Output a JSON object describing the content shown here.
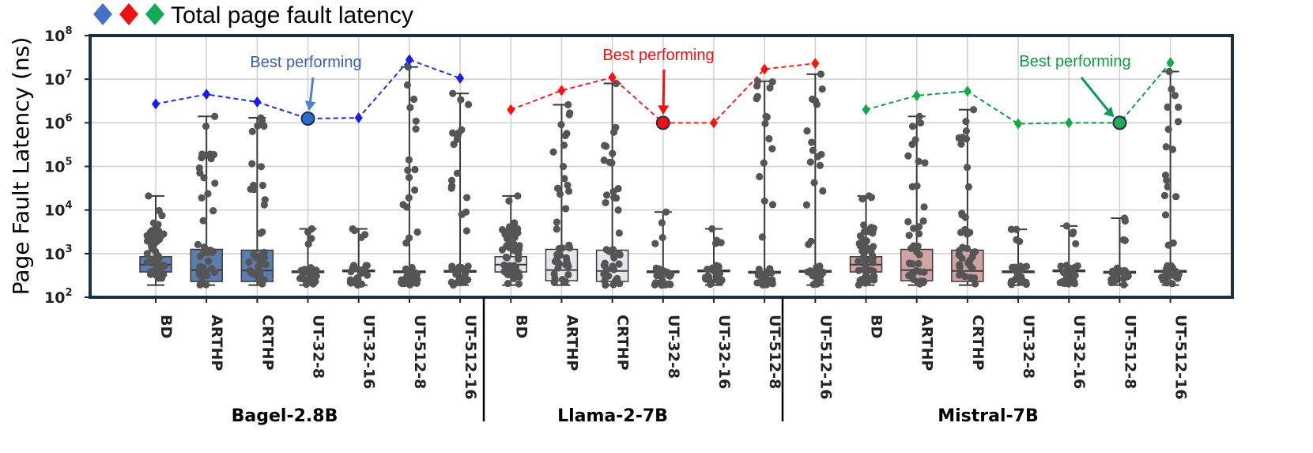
{
  "chart_data": {
    "type": "box+strip+line",
    "legend_label": "Total page fault latency",
    "legend_colors": [
      "#4472c4",
      "#ee1111",
      "#11aa55"
    ],
    "ylabel": "Page Fault Latency (ns)",
    "yscale": "log",
    "ylim": [
      100,
      100000000
    ],
    "yticks": [
      {
        "base": "10",
        "exp": "2",
        "value": 100
      },
      {
        "base": "10",
        "exp": "3",
        "value": 1000
      },
      {
        "base": "10",
        "exp": "4",
        "value": 10000
      },
      {
        "base": "10",
        "exp": "5",
        "value": 100000
      },
      {
        "base": "10",
        "exp": "6",
        "value": 1000000
      },
      {
        "base": "10",
        "exp": "7",
        "value": 10000000
      },
      {
        "base": "10",
        "exp": "8",
        "value": 100000000
      }
    ],
    "annotation_text": "Best performing",
    "groups": [
      {
        "name": "Bagel-2.8B",
        "color": "#1f2fd6",
        "marker_color": "#1a1aee",
        "best_color": "#2a6bd0",
        "arrow_color": "#4f82c8",
        "text_color": "#3b5fa8",
        "box_fill": "#5b7db0",
        "best_index": 3,
        "categories": [
          "BD",
          "ARTHP",
          "CRTHP",
          "UT-32-8",
          "UT-32-16",
          "UT-512-8",
          "UT-512-16"
        ],
        "totals": [
          2700000,
          4500000,
          3000000,
          1250000,
          1300000,
          28000000,
          10500000
        ],
        "boxes": [
          {
            "q1": 380,
            "median": 560,
            "q3": 850,
            "whislo": 190,
            "whishi": 21000
          },
          {
            "q1": 230,
            "median": 420,
            "q3": 1250,
            "whislo": 190,
            "whishi": 1400000
          },
          {
            "q1": 230,
            "median": 410,
            "q3": 1200,
            "whislo": 190,
            "whishi": 1300000
          },
          {
            "q1": 380,
            "median": 390,
            "q3": 400,
            "whislo": 190,
            "whishi": 3700
          },
          {
            "q1": 400,
            "median": 410,
            "q3": 420,
            "whislo": 190,
            "whishi": 3700
          },
          {
            "q1": 370,
            "median": 380,
            "q3": 400,
            "whislo": 190,
            "whishi": 19000000
          },
          {
            "q1": 390,
            "median": 400,
            "q3": 410,
            "whislo": 190,
            "whishi": 4700000
          }
        ]
      },
      {
        "name": "Llama-2-7B",
        "color": "#f02020",
        "marker_color": "#ff1010",
        "best_color": "#ee1111",
        "arrow_color": "#ee1111",
        "text_color": "#ee1111",
        "box_fill": "#e4e6ec",
        "best_index": 3,
        "categories": [
          "BD",
          "ARTHP",
          "CRTHP",
          "UT-32-8",
          "UT-32-16",
          "UT-512-8",
          "UT-512-16"
        ],
        "totals": [
          2000000,
          5500000,
          11000000,
          1000000,
          1000000,
          17000000,
          23000000
        ],
        "boxes": [
          {
            "q1": 380,
            "median": 560,
            "q3": 850,
            "whislo": 190,
            "whishi": 21000
          },
          {
            "q1": 240,
            "median": 420,
            "q3": 1250,
            "whislo": 190,
            "whishi": 2600000
          },
          {
            "q1": 230,
            "median": 400,
            "q3": 1200,
            "whislo": 190,
            "whishi": 8000000
          },
          {
            "q1": 370,
            "median": 380,
            "q3": 400,
            "whislo": 190,
            "whishi": 9000
          },
          {
            "q1": 400,
            "median": 410,
            "q3": 420,
            "whislo": 190,
            "whishi": 3700
          },
          {
            "q1": 370,
            "median": 380,
            "q3": 390,
            "whislo": 190,
            "whishi": 9000000
          },
          {
            "q1": 390,
            "median": 400,
            "q3": 410,
            "whislo": 190,
            "whishi": 13000000
          }
        ]
      },
      {
        "name": "Mistral-7B",
        "color": "#119944",
        "marker_color": "#11aa44",
        "best_color": "#22aa55",
        "arrow_color": "#119955",
        "text_color": "#119944",
        "box_fill": "#d2a3a0",
        "best_index": 5,
        "categories": [
          "BD",
          "ARTHP",
          "CRTHP",
          "UT-32-8",
          "UT-32-16",
          "UT-512-8",
          "UT-512-16"
        ],
        "totals": [
          2000000,
          4200000,
          5300000,
          950000,
          1000000,
          1000000,
          24000000
        ],
        "boxes": [
          {
            "q1": 380,
            "median": 560,
            "q3": 850,
            "whislo": 190,
            "whishi": 21000
          },
          {
            "q1": 240,
            "median": 420,
            "q3": 1250,
            "whislo": 190,
            "whishi": 1400000
          },
          {
            "q1": 230,
            "median": 400,
            "q3": 1200,
            "whislo": 190,
            "whishi": 2000000
          },
          {
            "q1": 370,
            "median": 380,
            "q3": 400,
            "whislo": 190,
            "whishi": 3600
          },
          {
            "q1": 400,
            "median": 410,
            "q3": 420,
            "whislo": 190,
            "whishi": 4300
          },
          {
            "q1": 370,
            "median": 380,
            "q3": 390,
            "whislo": 190,
            "whishi": 6500
          },
          {
            "q1": 390,
            "median": 400,
            "q3": 410,
            "whislo": 190,
            "whishi": 15000000
          }
        ]
      }
    ]
  }
}
